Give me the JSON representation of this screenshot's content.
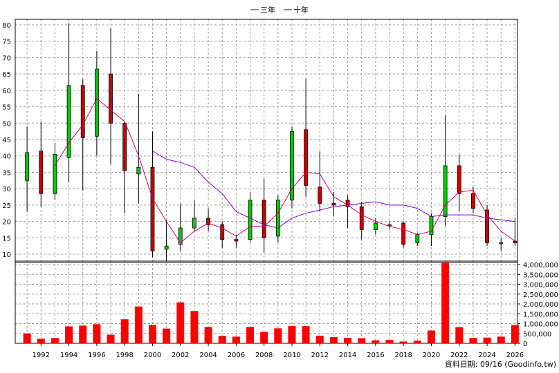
{
  "chart_data": {
    "type": "candlestick+line+bar",
    "legend": [
      {
        "name": "三年",
        "color": "#cc0066"
      },
      {
        "name": "十年",
        "color": "#7a00cc"
      }
    ],
    "legend_position": "top-center",
    "grid": true,
    "x_tick_labels": [
      "1992",
      "1994",
      "1996",
      "1998",
      "2000",
      "2002",
      "2004",
      "2006",
      "2008",
      "2010",
      "2012",
      "2014",
      "2016",
      "2018",
      "2020",
      "2022",
      "2024",
      "2026"
    ],
    "price_axis": {
      "ylim": [
        10,
        80
      ],
      "ticks": [
        80,
        75,
        70,
        65,
        60,
        55,
        50,
        45,
        40,
        35,
        30,
        25,
        20,
        15,
        10
      ]
    },
    "volume_axis": {
      "ylim": [
        0,
        4000000
      ],
      "ticks": [
        "4,000,000",
        "3,500,000",
        "3,000,000",
        "2,500,000",
        "2,000,000",
        "1,500,000",
        "1,000,000",
        "500,000",
        "0"
      ]
    },
    "up_color": "#00cc00",
    "down_color": "#cc0000",
    "candles": [
      {
        "year": 1991,
        "open": 32.5,
        "close": 41.0,
        "high": 49.0,
        "low": 23.0
      },
      {
        "year": 1992,
        "open": 41.5,
        "close": 28.5,
        "high": 50.5,
        "low": 24.5
      },
      {
        "year": 1993,
        "open": 28.5,
        "close": 40.5,
        "high": 44.0,
        "low": 26.5
      },
      {
        "year": 1994,
        "open": 39.5,
        "close": 61.5,
        "high": 80.5,
        "low": 32.0
      },
      {
        "year": 1995,
        "open": 61.5,
        "close": 45.5,
        "high": 63.5,
        "low": 29.5
      },
      {
        "year": 1996,
        "open": 46.0,
        "close": 66.5,
        "high": 72.0,
        "low": 40.0
      },
      {
        "year": 1997,
        "open": 65.0,
        "close": 50.0,
        "high": 79.0,
        "low": 37.5
      },
      {
        "year": 1998,
        "open": 50.0,
        "close": 35.5,
        "high": 50.5,
        "low": 22.5
      },
      {
        "year": 1999,
        "open": 34.5,
        "close": 36.5,
        "high": 59.0,
        "low": 25.5
      },
      {
        "year": 2000,
        "open": 36.5,
        "close": 11.0,
        "high": 47.5,
        "low": 9.0
      },
      {
        "year": 2001,
        "open": 11.5,
        "close": 12.5,
        "high": 20.5,
        "low": 8.0
      },
      {
        "year": 2002,
        "open": 13.0,
        "close": 18.0,
        "high": 25.5,
        "low": 11.0
      },
      {
        "year": 2003,
        "open": 18.0,
        "close": 21.0,
        "high": 26.5,
        "low": 17.0
      },
      {
        "year": 2004,
        "open": 21.0,
        "close": 19.0,
        "high": 24.0,
        "low": 17.0
      },
      {
        "year": 2005,
        "open": 19.0,
        "close": 14.5,
        "high": 20.0,
        "low": 12.0
      },
      {
        "year": 2006,
        "open": 14.5,
        "close": 14.0,
        "high": 16.0,
        "low": 12.0
      },
      {
        "year": 2007,
        "open": 14.5,
        "close": 26.5,
        "high": 29.0,
        "low": 13.5
      },
      {
        "year": 2008,
        "open": 26.5,
        "close": 15.0,
        "high": 33.0,
        "low": 10.5
      },
      {
        "year": 2009,
        "open": 15.5,
        "close": 26.5,
        "high": 28.0,
        "low": 13.5
      },
      {
        "year": 2010,
        "open": 26.5,
        "close": 47.5,
        "high": 49.0,
        "low": 24.0
      },
      {
        "year": 2011,
        "open": 48.0,
        "close": 31.0,
        "high": 63.5,
        "low": 27.5
      },
      {
        "year": 2012,
        "open": 30.5,
        "close": 25.5,
        "high": 41.5,
        "low": 23.0
      },
      {
        "year": 2013,
        "open": 25.5,
        "close": 25.0,
        "high": 29.0,
        "low": 21.5
      },
      {
        "year": 2014,
        "open": 26.5,
        "close": 24.5,
        "high": 28.0,
        "low": 18.0
      },
      {
        "year": 2015,
        "open": 24.5,
        "close": 17.5,
        "high": 26.0,
        "low": 14.5
      },
      {
        "year": 2016,
        "open": 17.5,
        "close": 19.5,
        "high": 21.0,
        "low": 16.0
      },
      {
        "year": 2017,
        "open": 19.0,
        "close": 19.0,
        "high": 20.0,
        "low": 17.5
      },
      {
        "year": 2018,
        "open": 19.5,
        "close": 13.0,
        "high": 20.0,
        "low": 12.0
      },
      {
        "year": 2019,
        "open": 13.5,
        "close": 16.0,
        "high": 16.5,
        "low": 12.5
      },
      {
        "year": 2020,
        "open": 16.0,
        "close": 21.5,
        "high": 22.5,
        "low": 12.5
      },
      {
        "year": 2021,
        "open": 21.5,
        "close": 37.0,
        "high": 52.5,
        "low": 18.5
      },
      {
        "year": 2022,
        "open": 37.0,
        "close": 28.5,
        "high": 40.5,
        "low": 23.0
      },
      {
        "year": 2023,
        "open": 28.5,
        "close": 24.0,
        "high": 30.5,
        "low": 22.5
      },
      {
        "year": 2024,
        "open": 23.5,
        "close": 13.5,
        "high": 25.0,
        "low": 12.5
      },
      {
        "year": 2025,
        "open": 13.5,
        "close": 13.5,
        "high": 15.0,
        "low": 11.0
      },
      {
        "year": 2026,
        "open": 14.0,
        "close": 13.5,
        "high": 21.0,
        "low": 12.5
      }
    ],
    "ma3": [
      {
        "year": 1993,
        "value": 37.0
      },
      {
        "year": 1994,
        "value": 44.0
      },
      {
        "year": 1995,
        "value": 49.5
      },
      {
        "year": 1996,
        "value": 57.5
      },
      {
        "year": 1997,
        "value": 54.0
      },
      {
        "year": 1998,
        "value": 50.5
      },
      {
        "year": 1999,
        "value": 40.0
      },
      {
        "year": 2000,
        "value": 27.0
      },
      {
        "year": 2001,
        "value": 20.0
      },
      {
        "year": 2002,
        "value": 13.5
      },
      {
        "year": 2003,
        "value": 17.0
      },
      {
        "year": 2004,
        "value": 19.5
      },
      {
        "year": 2005,
        "value": 18.0
      },
      {
        "year": 2006,
        "value": 15.5
      },
      {
        "year": 2007,
        "value": 18.5
      },
      {
        "year": 2008,
        "value": 18.5
      },
      {
        "year": 2009,
        "value": 22.5
      },
      {
        "year": 2010,
        "value": 30.0
      },
      {
        "year": 2011,
        "value": 35.0
      },
      {
        "year": 2012,
        "value": 34.5
      },
      {
        "year": 2013,
        "value": 27.5
      },
      {
        "year": 2014,
        "value": 25.0
      },
      {
        "year": 2015,
        "value": 22.0
      },
      {
        "year": 2016,
        "value": 20.0
      },
      {
        "year": 2017,
        "value": 18.5
      },
      {
        "year": 2018,
        "value": 17.5
      },
      {
        "year": 2019,
        "value": 16.0
      },
      {
        "year": 2020,
        "value": 17.0
      },
      {
        "year": 2021,
        "value": 25.0
      },
      {
        "year": 2022,
        "value": 29.0
      },
      {
        "year": 2023,
        "value": 29.5
      },
      {
        "year": 2024,
        "value": 22.0
      },
      {
        "year": 2025,
        "value": 17.0
      },
      {
        "year": 2026,
        "value": 14.0
      }
    ],
    "ma10": [
      {
        "year": 2000,
        "value": 41.5
      },
      {
        "year": 2001,
        "value": 39.0
      },
      {
        "year": 2002,
        "value": 38.0
      },
      {
        "year": 2003,
        "value": 36.5
      },
      {
        "year": 2004,
        "value": 32.0
      },
      {
        "year": 2005,
        "value": 28.5
      },
      {
        "year": 2006,
        "value": 23.0
      },
      {
        "year": 2007,
        "value": 21.0
      },
      {
        "year": 2008,
        "value": 19.0
      },
      {
        "year": 2009,
        "value": 18.0
      },
      {
        "year": 2010,
        "value": 21.0
      },
      {
        "year": 2011,
        "value": 22.5
      },
      {
        "year": 2012,
        "value": 23.5
      },
      {
        "year": 2013,
        "value": 24.5
      },
      {
        "year": 2014,
        "value": 25.0
      },
      {
        "year": 2015,
        "value": 25.5
      },
      {
        "year": 2016,
        "value": 26.0
      },
      {
        "year": 2017,
        "value": 25.0
      },
      {
        "year": 2018,
        "value": 25.0
      },
      {
        "year": 2019,
        "value": 24.0
      },
      {
        "year": 2020,
        "value": 21.5
      },
      {
        "year": 2021,
        "value": 22.0
      },
      {
        "year": 2022,
        "value": 22.0
      },
      {
        "year": 2023,
        "value": 22.0
      },
      {
        "year": 2024,
        "value": 21.0
      },
      {
        "year": 2025,
        "value": 20.5
      },
      {
        "year": 2026,
        "value": 20.0
      }
    ],
    "volume": [
      {
        "year": 1991,
        "value": 500000
      },
      {
        "year": 1992,
        "value": 230000
      },
      {
        "year": 1993,
        "value": 270000
      },
      {
        "year": 1994,
        "value": 860000
      },
      {
        "year": 1995,
        "value": 900000
      },
      {
        "year": 1996,
        "value": 970000
      },
      {
        "year": 1997,
        "value": 440000
      },
      {
        "year": 1998,
        "value": 1220000
      },
      {
        "year": 1999,
        "value": 1870000
      },
      {
        "year": 2000,
        "value": 930000
      },
      {
        "year": 2001,
        "value": 750000
      },
      {
        "year": 2002,
        "value": 2080000
      },
      {
        "year": 2003,
        "value": 1640000
      },
      {
        "year": 2004,
        "value": 830000
      },
      {
        "year": 2005,
        "value": 380000
      },
      {
        "year": 2006,
        "value": 340000
      },
      {
        "year": 2007,
        "value": 830000
      },
      {
        "year": 2008,
        "value": 580000
      },
      {
        "year": 2009,
        "value": 760000
      },
      {
        "year": 2010,
        "value": 880000
      },
      {
        "year": 2011,
        "value": 870000
      },
      {
        "year": 2012,
        "value": 380000
      },
      {
        "year": 2013,
        "value": 320000
      },
      {
        "year": 2014,
        "value": 280000
      },
      {
        "year": 2015,
        "value": 260000
      },
      {
        "year": 2016,
        "value": 150000
      },
      {
        "year": 2017,
        "value": 170000
      },
      {
        "year": 2018,
        "value": 90000
      },
      {
        "year": 2019,
        "value": 130000
      },
      {
        "year": 2020,
        "value": 650000
      },
      {
        "year": 2021,
        "value": 4100000
      },
      {
        "year": 2022,
        "value": 820000
      },
      {
        "year": 2023,
        "value": 270000
      },
      {
        "year": 2024,
        "value": 290000
      },
      {
        "year": 2025,
        "value": 340000
      },
      {
        "year": 2026,
        "value": 930000
      }
    ],
    "source_note": "資料日期: 09/16  (Goodinfo.tw)"
  }
}
